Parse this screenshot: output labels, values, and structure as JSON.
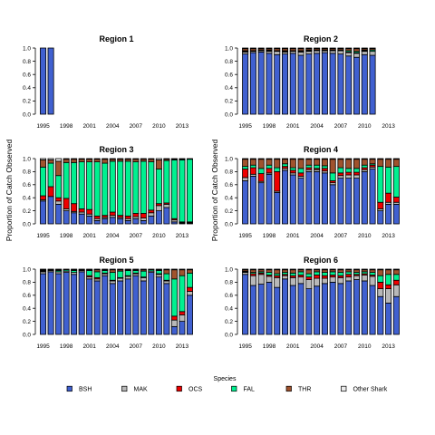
{
  "ylabel": "Proportion of Catch Observed",
  "legend": {
    "title": "Species"
  },
  "species": [
    {
      "code": "BSH",
      "color": "#4060d0"
    },
    {
      "code": "MAK",
      "color": "#b8b8b8"
    },
    {
      "code": "OCS",
      "color": "#ee0000"
    },
    {
      "code": "FAL",
      "color": "#00f090"
    },
    {
      "code": "THR",
      "color": "#a0522d"
    },
    {
      "code": "Other Shark",
      "color": "#ececec"
    }
  ],
  "chart_data": [
    {
      "type": "bar",
      "stacked": true,
      "title": "Region 1",
      "ylabel": "",
      "ylim": [
        0,
        1
      ],
      "yticks": [
        "0.0",
        "0.2",
        "0.4",
        "0.6",
        "0.8",
        "1.0"
      ],
      "x_tick_labels": [
        "1995",
        "1998",
        "2001",
        "2004",
        "2007",
        "2010",
        "2013"
      ],
      "categories": [
        1995,
        1996
      ],
      "series": [
        {
          "name": "BSH",
          "values": [
            1.0,
            1.0
          ]
        }
      ]
    },
    {
      "type": "bar",
      "stacked": true,
      "title": "Region 2",
      "ylabel": "",
      "ylim": [
        0,
        1
      ],
      "yticks": [
        "0.0",
        "0.2",
        "0.4",
        "0.6",
        "0.8",
        "1.0"
      ],
      "x_tick_labels": [
        "1995",
        "1998",
        "2001",
        "2004",
        "2007",
        "2010",
        "2013"
      ],
      "categories": [
        1995,
        1996,
        1997,
        1998,
        1999,
        2000,
        2001,
        2002,
        2003,
        2004,
        2005,
        2006,
        2007,
        2008,
        2009,
        2010,
        2011
      ],
      "series": [
        {
          "name": "BSH",
          "values": [
            0.91,
            0.93,
            0.94,
            0.92,
            0.9,
            0.91,
            0.92,
            0.89,
            0.91,
            0.92,
            0.93,
            0.92,
            0.91,
            0.88,
            0.86,
            0.9,
            0.89
          ]
        },
        {
          "name": "MAK",
          "values": [
            0.03,
            0.02,
            0.02,
            0.03,
            0.05,
            0.03,
            0.03,
            0.05,
            0.04,
            0.04,
            0.03,
            0.04,
            0.05,
            0.05,
            0.06,
            0.05,
            0.06
          ]
        },
        {
          "name": "OCS",
          "values": [
            0.01,
            0.0,
            0.0,
            0.01,
            0.0,
            0.01,
            0.0,
            0.01,
            0.01,
            0.0,
            0.0,
            0.0,
            0.0,
            0.01,
            0.01,
            0.01,
            0.0
          ]
        },
        {
          "name": "FAL",
          "values": [
            0.01,
            0.01,
            0.01,
            0.01,
            0.01,
            0.01,
            0.01,
            0.01,
            0.01,
            0.01,
            0.01,
            0.01,
            0.01,
            0.02,
            0.02,
            0.01,
            0.02
          ]
        },
        {
          "name": "THR",
          "values": [
            0.03,
            0.03,
            0.02,
            0.02,
            0.03,
            0.03,
            0.03,
            0.03,
            0.02,
            0.02,
            0.02,
            0.02,
            0.02,
            0.03,
            0.04,
            0.02,
            0.02
          ]
        },
        {
          "name": "Other Shark",
          "values": [
            0.01,
            0.01,
            0.01,
            0.01,
            0.01,
            0.01,
            0.01,
            0.01,
            0.01,
            0.01,
            0.01,
            0.01,
            0.01,
            0.01,
            0.01,
            0.01,
            0.01
          ]
        }
      ]
    },
    {
      "type": "bar",
      "stacked": true,
      "title": "Region 3",
      "ylabel": "Proportion of Catch Observed",
      "ylim": [
        0,
        1
      ],
      "yticks": [
        "0.0",
        "0.2",
        "0.4",
        "0.6",
        "0.8",
        "1.0"
      ],
      "x_tick_labels": [
        "1995",
        "1998",
        "2001",
        "2004",
        "2007",
        "2010",
        "2013"
      ],
      "categories": [
        1995,
        1996,
        1997,
        1998,
        1999,
        2000,
        2001,
        2002,
        2003,
        2004,
        2005,
        2006,
        2007,
        2008,
        2009,
        2010,
        2011,
        2012,
        2013,
        2014
      ],
      "series": [
        {
          "name": "BSH",
          "values": [
            0.35,
            0.42,
            0.3,
            0.2,
            0.17,
            0.15,
            0.12,
            0.05,
            0.08,
            0.1,
            0.08,
            0.05,
            0.08,
            0.05,
            0.12,
            0.2,
            0.25,
            0.03,
            0.01,
            0.01
          ]
        },
        {
          "name": "MAK",
          "values": [
            0.02,
            0.0,
            0.05,
            0.03,
            0.02,
            0.03,
            0.03,
            0.03,
            0.02,
            0.03,
            0.02,
            0.03,
            0.03,
            0.04,
            0.05,
            0.08,
            0.05,
            0.03,
            0.01,
            0.01
          ]
        },
        {
          "name": "OCS",
          "values": [
            0.06,
            0.15,
            0.05,
            0.16,
            0.12,
            0.05,
            0.07,
            0.04,
            0.03,
            0.05,
            0.03,
            0.04,
            0.05,
            0.07,
            0.04,
            0.03,
            0.02,
            0.02,
            0.01,
            0.01
          ]
        },
        {
          "name": "FAL",
          "values": [
            0.44,
            0.36,
            0.34,
            0.55,
            0.63,
            0.72,
            0.73,
            0.83,
            0.8,
            0.78,
            0.83,
            0.84,
            0.79,
            0.8,
            0.74,
            0.53,
            0.65,
            0.9,
            0.95,
            0.96
          ]
        },
        {
          "name": "THR",
          "values": [
            0.11,
            0.05,
            0.22,
            0.05,
            0.05,
            0.04,
            0.04,
            0.04,
            0.06,
            0.03,
            0.03,
            0.03,
            0.04,
            0.03,
            0.04,
            0.14,
            0.02,
            0.01,
            0.01,
            0.0
          ]
        },
        {
          "name": "Other Shark",
          "values": [
            0.02,
            0.02,
            0.04,
            0.01,
            0.01,
            0.01,
            0.01,
            0.01,
            0.01,
            0.01,
            0.01,
            0.01,
            0.01,
            0.01,
            0.01,
            0.02,
            0.01,
            0.01,
            0.01,
            0.01
          ]
        }
      ]
    },
    {
      "type": "bar",
      "stacked": true,
      "title": "Region 4",
      "ylabel": "Proportion of Catch Observed",
      "ylim": [
        0,
        1
      ],
      "yticks": [
        "0.0",
        "0.2",
        "0.4",
        "0.6",
        "0.8",
        "1.0"
      ],
      "x_tick_labels": [
        "1995",
        "1998",
        "2001",
        "2004",
        "2007",
        "2010",
        "2013"
      ],
      "categories": [
        1995,
        1996,
        1997,
        1998,
        1999,
        2000,
        2001,
        2002,
        2003,
        2004,
        2005,
        2006,
        2007,
        2008,
        2009,
        2010,
        2011,
        2012,
        2013,
        2014
      ],
      "series": [
        {
          "name": "BSH",
          "values": [
            0.66,
            0.73,
            0.63,
            0.76,
            0.48,
            0.82,
            0.75,
            0.7,
            0.8,
            0.8,
            0.78,
            0.6,
            0.7,
            0.7,
            0.7,
            0.8,
            0.84,
            0.2,
            0.3,
            0.3
          ]
        },
        {
          "name": "MAK",
          "values": [
            0.05,
            0.03,
            0.02,
            0.02,
            0.02,
            0.03,
            0.03,
            0.03,
            0.03,
            0.03,
            0.03,
            0.03,
            0.04,
            0.05,
            0.05,
            0.03,
            0.03,
            0.03,
            0.03,
            0.03
          ]
        },
        {
          "name": "OCS",
          "values": [
            0.13,
            0.1,
            0.12,
            0.07,
            0.3,
            0.03,
            0.04,
            0.05,
            0.03,
            0.02,
            0.04,
            0.03,
            0.04,
            0.04,
            0.04,
            0.03,
            0.03,
            0.1,
            0.14,
            0.08
          ]
        },
        {
          "name": "FAL",
          "values": [
            0.04,
            0.04,
            0.08,
            0.05,
            0.06,
            0.04,
            0.04,
            0.07,
            0.04,
            0.05,
            0.04,
            0.12,
            0.08,
            0.06,
            0.06,
            0.04,
            0.02,
            0.55,
            0.4,
            0.47
          ]
        },
        {
          "name": "THR",
          "values": [
            0.11,
            0.09,
            0.14,
            0.09,
            0.13,
            0.07,
            0.13,
            0.14,
            0.09,
            0.09,
            0.1,
            0.21,
            0.13,
            0.14,
            0.14,
            0.09,
            0.07,
            0.11,
            0.12,
            0.11
          ]
        },
        {
          "name": "Other Shark",
          "values": [
            0.01,
            0.01,
            0.01,
            0.01,
            0.01,
            0.01,
            0.01,
            0.01,
            0.01,
            0.01,
            0.01,
            0.01,
            0.01,
            0.01,
            0.01,
            0.01,
            0.01,
            0.01,
            0.01,
            0.01
          ]
        }
      ]
    },
    {
      "type": "bar",
      "stacked": true,
      "title": "Region 5",
      "ylabel": "",
      "ylim": [
        0,
        1
      ],
      "yticks": [
        "0.0",
        "0.2",
        "0.4",
        "0.6",
        "0.8",
        "1.0"
      ],
      "x_tick_labels": [
        "1995",
        "1998",
        "2001",
        "2004",
        "2007",
        "2010",
        "2013"
      ],
      "categories": [
        1995,
        1996,
        1997,
        1998,
        1999,
        2000,
        2001,
        2002,
        2003,
        2004,
        2005,
        2006,
        2007,
        2008,
        2009,
        2010,
        2011,
        2012,
        2013,
        2014
      ],
      "series": [
        {
          "name": "BSH",
          "values": [
            0.93,
            0.96,
            0.93,
            0.95,
            0.92,
            0.96,
            0.85,
            0.82,
            0.9,
            0.78,
            0.82,
            0.85,
            0.9,
            0.82,
            0.95,
            0.88,
            0.78,
            0.12,
            0.2,
            0.6
          ]
        },
        {
          "name": "MAK",
          "values": [
            0.03,
            0.02,
            0.03,
            0.02,
            0.03,
            0.02,
            0.03,
            0.03,
            0.03,
            0.04,
            0.04,
            0.04,
            0.03,
            0.05,
            0.02,
            0.04,
            0.04,
            0.1,
            0.1,
            0.06
          ]
        },
        {
          "name": "OCS",
          "values": [
            0.01,
            0.0,
            0.0,
            0.0,
            0.0,
            0.0,
            0.02,
            0.02,
            0.01,
            0.01,
            0.01,
            0.01,
            0.01,
            0.01,
            0.0,
            0.01,
            0.01,
            0.06,
            0.05,
            0.06
          ]
        },
        {
          "name": "FAL",
          "values": [
            0.01,
            0.01,
            0.02,
            0.02,
            0.03,
            0.01,
            0.08,
            0.09,
            0.04,
            0.12,
            0.1,
            0.08,
            0.04,
            0.09,
            0.02,
            0.05,
            0.1,
            0.57,
            0.55,
            0.22
          ]
        },
        {
          "name": "THR",
          "values": [
            0.01,
            0.0,
            0.01,
            0.0,
            0.01,
            0.0,
            0.01,
            0.03,
            0.01,
            0.04,
            0.02,
            0.01,
            0.01,
            0.02,
            0.0,
            0.01,
            0.06,
            0.14,
            0.09,
            0.05
          ]
        },
        {
          "name": "Other Shark",
          "values": [
            0.01,
            0.01,
            0.01,
            0.01,
            0.01,
            0.01,
            0.01,
            0.01,
            0.01,
            0.01,
            0.01,
            0.01,
            0.01,
            0.01,
            0.01,
            0.01,
            0.01,
            0.01,
            0.01,
            0.01
          ]
        }
      ]
    },
    {
      "type": "bar",
      "stacked": true,
      "title": "Region 6",
      "ylabel": "",
      "ylim": [
        0,
        1
      ],
      "yticks": [
        "0.0",
        "0.2",
        "0.4",
        "0.6",
        "0.8",
        "1.0"
      ],
      "x_tick_labels": [
        "1995",
        "1998",
        "2001",
        "2004",
        "2007",
        "2010",
        "2013"
      ],
      "categories": [
        1995,
        1996,
        1997,
        1998,
        1999,
        2000,
        2001,
        2002,
        2003,
        2004,
        2005,
        2006,
        2007,
        2008,
        2009,
        2010,
        2011,
        2012,
        2013,
        2014
      ],
      "series": [
        {
          "name": "BSH",
          "values": [
            0.92,
            0.75,
            0.77,
            0.8,
            0.72,
            0.85,
            0.75,
            0.78,
            0.7,
            0.74,
            0.78,
            0.8,
            0.78,
            0.82,
            0.84,
            0.82,
            0.75,
            0.58,
            0.48,
            0.58
          ]
        },
        {
          "name": "MAK",
          "values": [
            0.03,
            0.15,
            0.15,
            0.09,
            0.15,
            0.05,
            0.12,
            0.1,
            0.14,
            0.12,
            0.08,
            0.08,
            0.09,
            0.06,
            0.06,
            0.09,
            0.14,
            0.12,
            0.22,
            0.18
          ]
        },
        {
          "name": "OCS",
          "values": [
            0.01,
            0.03,
            0.02,
            0.02,
            0.03,
            0.02,
            0.03,
            0.03,
            0.04,
            0.05,
            0.04,
            0.03,
            0.03,
            0.04,
            0.02,
            0.02,
            0.02,
            0.1,
            0.06,
            0.07
          ]
        },
        {
          "name": "FAL",
          "values": [
            0.01,
            0.02,
            0.02,
            0.04,
            0.03,
            0.03,
            0.04,
            0.05,
            0.05,
            0.05,
            0.05,
            0.05,
            0.05,
            0.04,
            0.03,
            0.03,
            0.04,
            0.1,
            0.16,
            0.09
          ]
        },
        {
          "name": "THR",
          "values": [
            0.02,
            0.04,
            0.03,
            0.04,
            0.06,
            0.04,
            0.05,
            0.03,
            0.06,
            0.03,
            0.04,
            0.03,
            0.04,
            0.03,
            0.04,
            0.03,
            0.04,
            0.09,
            0.07,
            0.07
          ]
        },
        {
          "name": "Other Shark",
          "values": [
            0.01,
            0.01,
            0.01,
            0.01,
            0.01,
            0.01,
            0.01,
            0.01,
            0.01,
            0.01,
            0.01,
            0.01,
            0.01,
            0.01,
            0.01,
            0.01,
            0.01,
            0.01,
            0.01,
            0.01
          ]
        }
      ]
    }
  ]
}
